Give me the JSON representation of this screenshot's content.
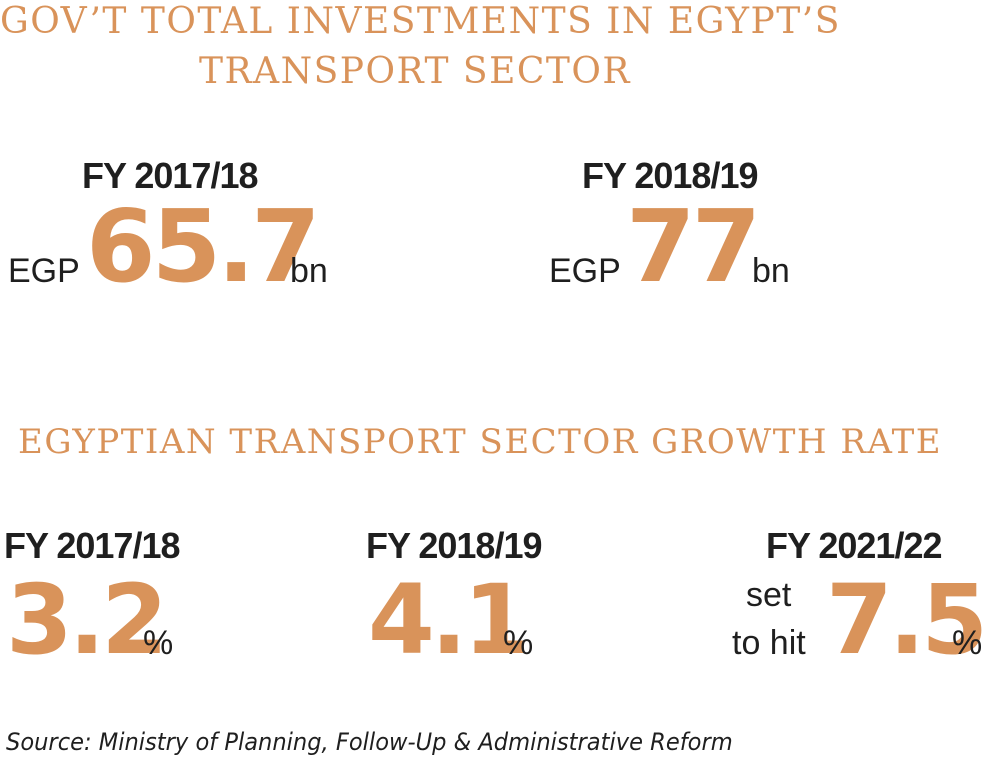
{
  "investments": {
    "title_line1": "GOV’T TOTAL INVESTMENTS IN EGYPT’S",
    "title_line2": "TRANSPORT SECTOR",
    "items": [
      {
        "fy": "FY 2017/18",
        "prefix": "EGP",
        "value": "65.7",
        "suffix": "bn"
      },
      {
        "fy": "FY 2018/19",
        "prefix": "EGP",
        "value": "77",
        "suffix": "bn"
      }
    ]
  },
  "growth": {
    "title": "EGYPTIAN TRANSPORT SECTOR GROWTH RATE",
    "items": [
      {
        "fy": "FY 2017/18",
        "value": "3.2",
        "unit": "%"
      },
      {
        "fy": "FY 2018/19",
        "value": "4.1",
        "unit": "%"
      },
      {
        "fy": "FY 2021/22",
        "note_line1": "set",
        "note_line2": "to hit",
        "value": "7.5",
        "unit": "%"
      }
    ]
  },
  "source": "Source: Ministry of Planning, Follow-Up & Administrative Reform",
  "colors": {
    "accent": "#d9935a",
    "text": "#1f1f1f"
  }
}
